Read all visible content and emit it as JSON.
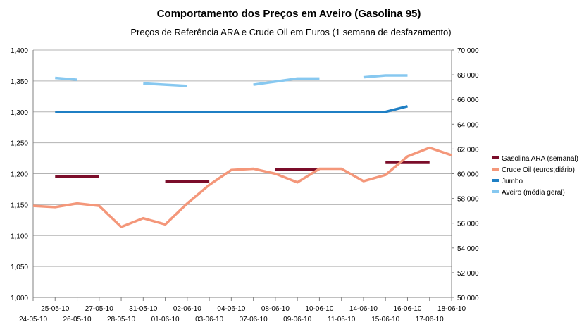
{
  "chart_data": {
    "type": "line",
    "title": "Comportamento dos Preços em Aveiro (Gasolina 95)",
    "subtitle": "Preços de Referência ARA e Crude Oil em Euros (1 semana de desfazamento)",
    "categories": [
      "24-05-10",
      "25-05-10",
      "26-05-10",
      "27-05-10",
      "28-05-10",
      "31-05-10",
      "01-06-10",
      "02-06-10",
      "03-06-10",
      "04-06-10",
      "07-06-10",
      "08-06-10",
      "09-06-10",
      "10-06-10",
      "11-06-10",
      "14-06-10",
      "15-06-10",
      "16-06-10",
      "17-06-10",
      "18-06-10"
    ],
    "y_left": {
      "ylim": [
        1.0,
        1.4
      ],
      "ticks": [
        "1,000",
        "1,050",
        "1,100",
        "1,150",
        "1,200",
        "1,250",
        "1,300",
        "1,350",
        "1,400"
      ]
    },
    "y_right": {
      "ylim": [
        50000,
        70000
      ],
      "ticks": [
        "50,000",
        "52,000",
        "54,000",
        "56,000",
        "58,000",
        "60,000",
        "62,000",
        "64,000",
        "66,000",
        "68,000",
        "70,000"
      ]
    },
    "grid": true,
    "legend_position": "right",
    "series": [
      {
        "name": "Gasolina ARA (semanal)",
        "axis": "left",
        "color": "#7b0d2a",
        "style": "segments",
        "segments": [
          {
            "from": 1,
            "to": 3,
            "value": 1.195
          },
          {
            "from": 6,
            "to": 8,
            "value": 1.188
          },
          {
            "from": 11,
            "to": 13,
            "value": 1.207
          },
          {
            "from": 16,
            "to": 18,
            "value": 1.218
          }
        ]
      },
      {
        "name": "Crude Oil (euros;diário)",
        "axis": "right",
        "color": "#f4977a",
        "style": "line",
        "values": [
          57.4,
          57.3,
          57.6,
          57.4,
          55.7,
          56.4,
          55.9,
          57.6,
          59.1,
          60.3,
          60.4,
          60.0,
          59.3,
          60.4,
          60.4,
          59.4,
          59.9,
          61.4,
          62.1,
          61.5
        ]
      },
      {
        "name": "Jumbo",
        "axis": "left",
        "color": "#1f7fc4",
        "style": "line",
        "values": [
          null,
          1.3,
          1.3,
          1.3,
          1.3,
          1.3,
          1.3,
          1.3,
          1.3,
          1.3,
          1.3,
          1.3,
          1.3,
          1.3,
          1.3,
          1.3,
          1.3,
          1.309,
          null,
          null
        ]
      },
      {
        "name": "Aveiro (média geral)",
        "axis": "left",
        "color": "#87c8f0",
        "style": "line",
        "values": [
          null,
          1.355,
          1.352,
          null,
          null,
          1.346,
          1.344,
          1.342,
          null,
          null,
          1.344,
          1.349,
          1.354,
          1.354,
          null,
          1.356,
          1.359,
          1.359,
          null,
          null
        ]
      }
    ]
  }
}
